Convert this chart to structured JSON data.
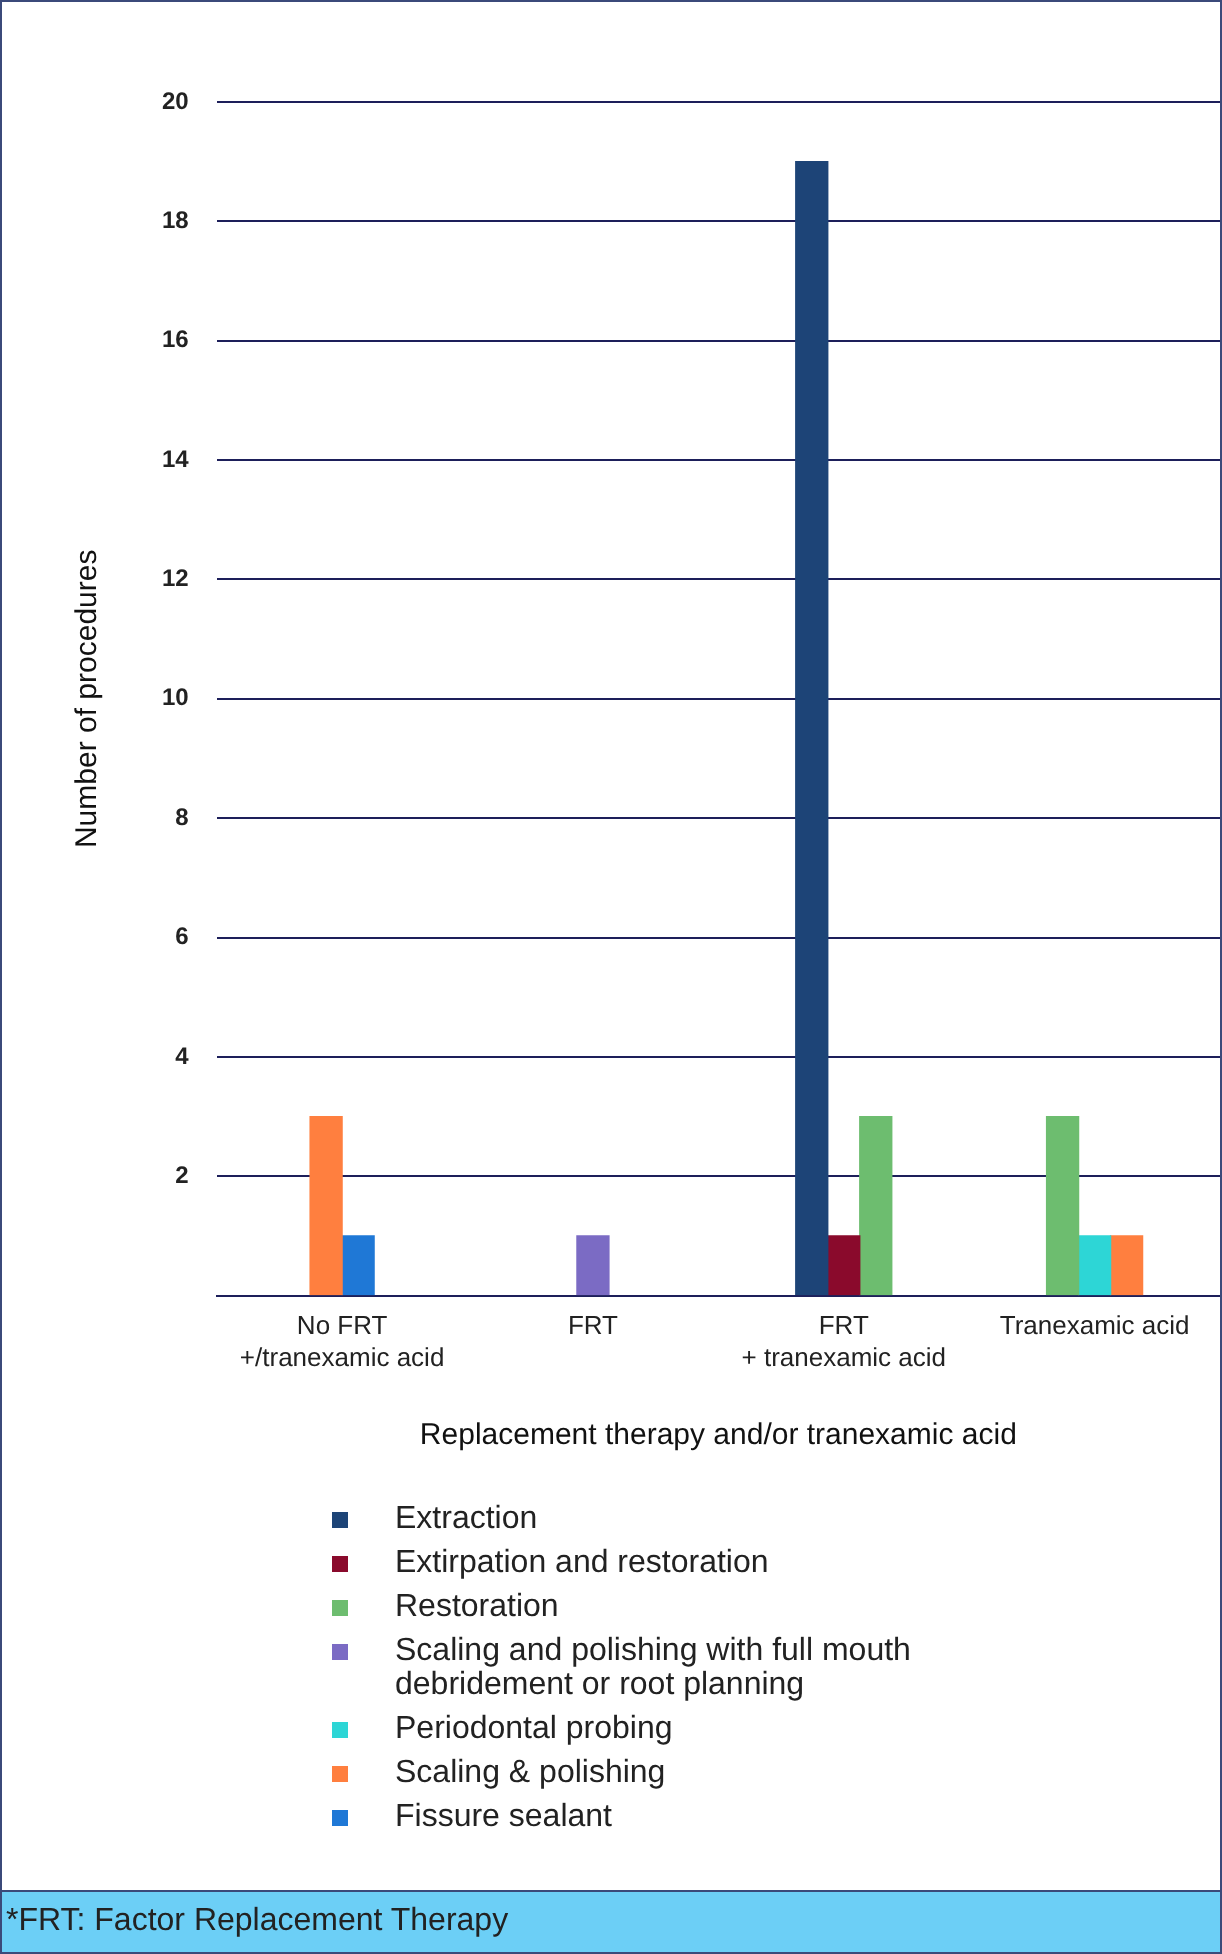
{
  "chart_data": {
    "type": "bar",
    "xlabel": "Replacement therapy and/or tranexamic acid",
    "ylabel": "Number of procedures",
    "categories": [
      "No FRT\n+/tranexamic acid",
      "FRT",
      "FRT\n+ tranexamic acid",
      "Tranexamic acid"
    ],
    "series": [
      {
        "name": "Extraction",
        "color": "#1d4477",
        "values": [
          null,
          null,
          19,
          null
        ]
      },
      {
        "name": "Extirpation and restoration",
        "color": "#8a0a2c",
        "values": [
          null,
          null,
          1,
          null
        ]
      },
      {
        "name": "Restoration",
        "color": "#6dbd6f",
        "values": [
          null,
          null,
          3,
          3
        ]
      },
      {
        "name": "Scaling and polishing with full mouth debridement or root planning",
        "color": "#7b6bc4",
        "values": [
          null,
          1,
          null,
          null
        ]
      },
      {
        "name": "Periodontal probing",
        "color": "#2dd6d6",
        "values": [
          null,
          null,
          null,
          1
        ]
      },
      {
        "name": "Scaling & polishing",
        "color": "#ff7f3f",
        "values": [
          3,
          null,
          null,
          1
        ]
      },
      {
        "name": "Fissure sealant",
        "color": "#1f78d6",
        "values": [
          1,
          null,
          null,
          null
        ]
      }
    ],
    "ylim": [
      0,
      20
    ],
    "yticks": [
      {
        "value": 0,
        "label": null
      },
      2,
      4,
      6,
      8,
      10,
      12,
      14,
      16,
      18,
      20
    ],
    "grid": "y",
    "legend": "bottom",
    "annotations": [
      "*FRT: Factor Replacement Therapy"
    ]
  }
}
